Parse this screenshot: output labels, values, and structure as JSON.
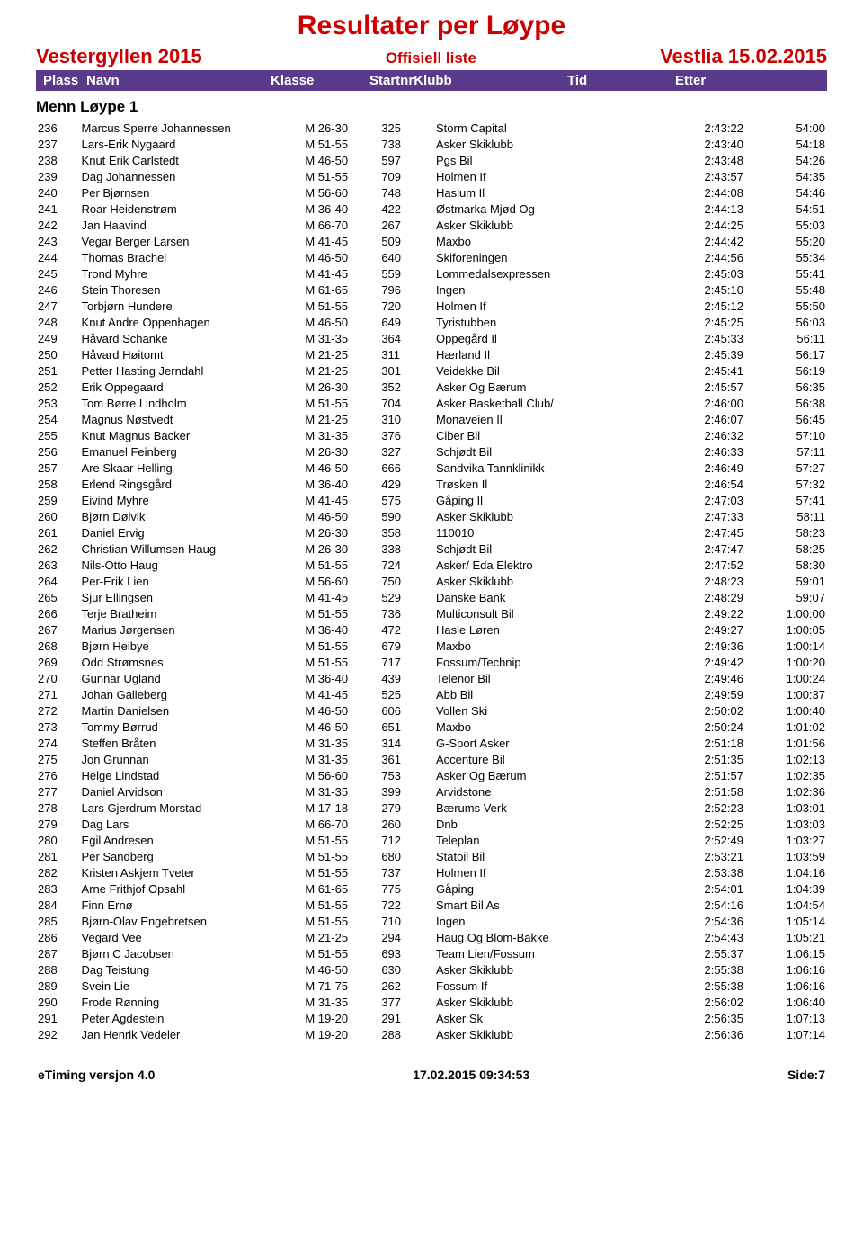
{
  "title": "Resultater per Løype",
  "event": "Vestergyllen 2015",
  "list_label": "Offisiell liste",
  "venue_date": "Vestlia 15.02.2015",
  "columns": {
    "plass": "Plass",
    "navn": "Navn",
    "klasse": "Klasse",
    "startnr": "Startnr",
    "klubb": "Klubb",
    "tid": "Tid",
    "etter": "Etter"
  },
  "section": "Menn Løype 1",
  "colors": {
    "heading": "#cc0000",
    "header_bar_bg": "#5a3a8a",
    "header_bar_fg": "#ffffff",
    "text": "#000000",
    "background": "#ffffff"
  },
  "footer": {
    "left": "eTiming versjon 4.0",
    "center": "17.02.2015 09:34:53",
    "right": "Side:7"
  },
  "rows": [
    {
      "plass": "236",
      "navn": "Marcus Sperre Johannessen",
      "klasse": "M 26-30",
      "startnr": "325",
      "klubb": "Storm Capital",
      "tid": "2:43:22",
      "etter": "54:00"
    },
    {
      "plass": "237",
      "navn": "Lars-Erik Nygaard",
      "klasse": "M 51-55",
      "startnr": "738",
      "klubb": "Asker Skiklubb",
      "tid": "2:43:40",
      "etter": "54:18"
    },
    {
      "plass": "238",
      "navn": "Knut Erik Carlstedt",
      "klasse": "M 46-50",
      "startnr": "597",
      "klubb": "Pgs Bil",
      "tid": "2:43:48",
      "etter": "54:26"
    },
    {
      "plass": "239",
      "navn": "Dag Johannessen",
      "klasse": "M 51-55",
      "startnr": "709",
      "klubb": "Holmen If",
      "tid": "2:43:57",
      "etter": "54:35"
    },
    {
      "plass": "240",
      "navn": "Per Bjørnsen",
      "klasse": "M 56-60",
      "startnr": "748",
      "klubb": "Haslum Il",
      "tid": "2:44:08",
      "etter": "54:46"
    },
    {
      "plass": "241",
      "navn": "Roar Heidenstrøm",
      "klasse": "M 36-40",
      "startnr": "422",
      "klubb": "Østmarka Mjød Og",
      "tid": "2:44:13",
      "etter": "54:51"
    },
    {
      "plass": "242",
      "navn": "Jan Haavind",
      "klasse": "M 66-70",
      "startnr": "267",
      "klubb": "Asker Skiklubb",
      "tid": "2:44:25",
      "etter": "55:03"
    },
    {
      "plass": "243",
      "navn": "Vegar Berger Larsen",
      "klasse": "M 41-45",
      "startnr": "509",
      "klubb": "Maxbo",
      "tid": "2:44:42",
      "etter": "55:20"
    },
    {
      "plass": "244",
      "navn": "Thomas Brachel",
      "klasse": "M 46-50",
      "startnr": "640",
      "klubb": "Skiforeningen",
      "tid": "2:44:56",
      "etter": "55:34"
    },
    {
      "plass": "245",
      "navn": "Trond Myhre",
      "klasse": "M 41-45",
      "startnr": "559",
      "klubb": "Lommedalsexpressen",
      "tid": "2:45:03",
      "etter": "55:41"
    },
    {
      "plass": "246",
      "navn": "Stein Thoresen",
      "klasse": "M 61-65",
      "startnr": "796",
      "klubb": "Ingen",
      "tid": "2:45:10",
      "etter": "55:48"
    },
    {
      "plass": "247",
      "navn": "Torbjørn Hundere",
      "klasse": "M 51-55",
      "startnr": "720",
      "klubb": "Holmen If",
      "tid": "2:45:12",
      "etter": "55:50"
    },
    {
      "plass": "248",
      "navn": "Knut Andre Oppenhagen",
      "klasse": "M 46-50",
      "startnr": "649",
      "klubb": "Tyristubben",
      "tid": "2:45:25",
      "etter": "56:03"
    },
    {
      "plass": "249",
      "navn": "Håvard Schanke",
      "klasse": "M 31-35",
      "startnr": "364",
      "klubb": "Oppegård Il",
      "tid": "2:45:33",
      "etter": "56:11"
    },
    {
      "plass": "250",
      "navn": "Håvard Høitomt",
      "klasse": "M 21-25",
      "startnr": "311",
      "klubb": "Hærland Il",
      "tid": "2:45:39",
      "etter": "56:17"
    },
    {
      "plass": "251",
      "navn": "Petter Hasting Jerndahl",
      "klasse": "M 21-25",
      "startnr": "301",
      "klubb": "Veidekke Bil",
      "tid": "2:45:41",
      "etter": "56:19"
    },
    {
      "plass": "252",
      "navn": "Erik Oppegaard",
      "klasse": "M 26-30",
      "startnr": "352",
      "klubb": "Asker Og Bærum",
      "tid": "2:45:57",
      "etter": "56:35"
    },
    {
      "plass": "253",
      "navn": "Tom Børre Lindholm",
      "klasse": "M 51-55",
      "startnr": "704",
      "klubb": "Asker Basketball Club/",
      "tid": "2:46:00",
      "etter": "56:38"
    },
    {
      "plass": "254",
      "navn": "Magnus Nøstvedt",
      "klasse": "M 21-25",
      "startnr": "310",
      "klubb": "Monaveien Il",
      "tid": "2:46:07",
      "etter": "56:45"
    },
    {
      "plass": "255",
      "navn": "Knut Magnus Backer",
      "klasse": "M 31-35",
      "startnr": "376",
      "klubb": "Ciber Bil",
      "tid": "2:46:32",
      "etter": "57:10"
    },
    {
      "plass": "256",
      "navn": "Emanuel Feinberg",
      "klasse": "M 26-30",
      "startnr": "327",
      "klubb": "Schjødt Bil",
      "tid": "2:46:33",
      "etter": "57:11"
    },
    {
      "plass": "257",
      "navn": "Are Skaar Helling",
      "klasse": "M 46-50",
      "startnr": "666",
      "klubb": "Sandvika Tannklinikk",
      "tid": "2:46:49",
      "etter": "57:27"
    },
    {
      "plass": "258",
      "navn": "Erlend Ringsgård",
      "klasse": "M 36-40",
      "startnr": "429",
      "klubb": "Trøsken Il",
      "tid": "2:46:54",
      "etter": "57:32"
    },
    {
      "plass": "259",
      "navn": "Eivind Myhre",
      "klasse": "M 41-45",
      "startnr": "575",
      "klubb": "Gåping Il",
      "tid": "2:47:03",
      "etter": "57:41"
    },
    {
      "plass": "260",
      "navn": "Bjørn Dølvik",
      "klasse": "M 46-50",
      "startnr": "590",
      "klubb": "Asker Skiklubb",
      "tid": "2:47:33",
      "etter": "58:11"
    },
    {
      "plass": "261",
      "navn": "Daniel Ervig",
      "klasse": "M 26-30",
      "startnr": "358",
      "klubb": "110010",
      "tid": "2:47:45",
      "etter": "58:23"
    },
    {
      "plass": "262",
      "navn": "Christian Willumsen Haug",
      "klasse": "M 26-30",
      "startnr": "338",
      "klubb": "Schjødt Bil",
      "tid": "2:47:47",
      "etter": "58:25"
    },
    {
      "plass": "263",
      "navn": "Nils-Otto Haug",
      "klasse": "M 51-55",
      "startnr": "724",
      "klubb": "Asker/ Eda Elektro",
      "tid": "2:47:52",
      "etter": "58:30"
    },
    {
      "plass": "264",
      "navn": "Per-Erik Lien",
      "klasse": "M 56-60",
      "startnr": "750",
      "klubb": "Asker Skiklubb",
      "tid": "2:48:23",
      "etter": "59:01"
    },
    {
      "plass": "265",
      "navn": "Sjur Ellingsen",
      "klasse": "M 41-45",
      "startnr": "529",
      "klubb": "Danske Bank",
      "tid": "2:48:29",
      "etter": "59:07"
    },
    {
      "plass": "266",
      "navn": "Terje Bratheim",
      "klasse": "M 51-55",
      "startnr": "736",
      "klubb": "Multiconsult Bil",
      "tid": "2:49:22",
      "etter": "1:00:00"
    },
    {
      "plass": "267",
      "navn": "Marius Jørgensen",
      "klasse": "M 36-40",
      "startnr": "472",
      "klubb": "Hasle Løren",
      "tid": "2:49:27",
      "etter": "1:00:05"
    },
    {
      "plass": "268",
      "navn": "Bjørn Heibye",
      "klasse": "M 51-55",
      "startnr": "679",
      "klubb": "Maxbo",
      "tid": "2:49:36",
      "etter": "1:00:14"
    },
    {
      "plass": "269",
      "navn": "Odd Strømsnes",
      "klasse": "M 51-55",
      "startnr": "717",
      "klubb": "Fossum/Technip",
      "tid": "2:49:42",
      "etter": "1:00:20"
    },
    {
      "plass": "270",
      "navn": "Gunnar Ugland",
      "klasse": "M 36-40",
      "startnr": "439",
      "klubb": "Telenor Bil",
      "tid": "2:49:46",
      "etter": "1:00:24"
    },
    {
      "plass": "271",
      "navn": "Johan Galleberg",
      "klasse": "M 41-45",
      "startnr": "525",
      "klubb": "Abb Bil",
      "tid": "2:49:59",
      "etter": "1:00:37"
    },
    {
      "plass": "272",
      "navn": "Martin Danielsen",
      "klasse": "M 46-50",
      "startnr": "606",
      "klubb": "Vollen Ski",
      "tid": "2:50:02",
      "etter": "1:00:40"
    },
    {
      "plass": "273",
      "navn": "Tommy Børrud",
      "klasse": "M 46-50",
      "startnr": "651",
      "klubb": "Maxbo",
      "tid": "2:50:24",
      "etter": "1:01:02"
    },
    {
      "plass": "274",
      "navn": "Steffen Bråten",
      "klasse": "M 31-35",
      "startnr": "314",
      "klubb": "G-Sport Asker",
      "tid": "2:51:18",
      "etter": "1:01:56"
    },
    {
      "plass": "275",
      "navn": "Jon Grunnan",
      "klasse": "M 31-35",
      "startnr": "361",
      "klubb": "Accenture Bil",
      "tid": "2:51:35",
      "etter": "1:02:13"
    },
    {
      "plass": "276",
      "navn": "Helge Lindstad",
      "klasse": "M 56-60",
      "startnr": "753",
      "klubb": "Asker Og Bærum",
      "tid": "2:51:57",
      "etter": "1:02:35"
    },
    {
      "plass": "277",
      "navn": "Daniel Arvidson",
      "klasse": "M 31-35",
      "startnr": "399",
      "klubb": "Arvidstone",
      "tid": "2:51:58",
      "etter": "1:02:36"
    },
    {
      "plass": "278",
      "navn": "Lars Gjerdrum Morstad",
      "klasse": "M 17-18",
      "startnr": "279",
      "klubb": "Bærums Verk",
      "tid": "2:52:23",
      "etter": "1:03:01"
    },
    {
      "plass": "279",
      "navn": "Dag Lars",
      "klasse": "M 66-70",
      "startnr": "260",
      "klubb": "Dnb",
      "tid": "2:52:25",
      "etter": "1:03:03"
    },
    {
      "plass": "280",
      "navn": "Egil Andresen",
      "klasse": "M 51-55",
      "startnr": "712",
      "klubb": "Teleplan",
      "tid": "2:52:49",
      "etter": "1:03:27"
    },
    {
      "plass": "281",
      "navn": "Per Sandberg",
      "klasse": "M 51-55",
      "startnr": "680",
      "klubb": "Statoil Bil",
      "tid": "2:53:21",
      "etter": "1:03:59"
    },
    {
      "plass": "282",
      "navn": "Kristen Askjem Tveter",
      "klasse": "M 51-55",
      "startnr": "737",
      "klubb": "Holmen If",
      "tid": "2:53:38",
      "etter": "1:04:16"
    },
    {
      "plass": "283",
      "navn": "Arne Frithjof Opsahl",
      "klasse": "M 61-65",
      "startnr": "775",
      "klubb": "Gåping",
      "tid": "2:54:01",
      "etter": "1:04:39"
    },
    {
      "plass": "284",
      "navn": "Finn Ernø",
      "klasse": "M 51-55",
      "startnr": "722",
      "klubb": "Smart Bil As",
      "tid": "2:54:16",
      "etter": "1:04:54"
    },
    {
      "plass": "285",
      "navn": "Bjørn-Olav Engebretsen",
      "klasse": "M 51-55",
      "startnr": "710",
      "klubb": "Ingen",
      "tid": "2:54:36",
      "etter": "1:05:14"
    },
    {
      "plass": "286",
      "navn": "Vegard Vee",
      "klasse": "M 21-25",
      "startnr": "294",
      "klubb": "Haug Og Blom-Bakke",
      "tid": "2:54:43",
      "etter": "1:05:21"
    },
    {
      "plass": "287",
      "navn": "Bjørn C Jacobsen",
      "klasse": "M 51-55",
      "startnr": "693",
      "klubb": "Team Lien/Fossum",
      "tid": "2:55:37",
      "etter": "1:06:15"
    },
    {
      "plass": "288",
      "navn": "Dag Teistung",
      "klasse": "M 46-50",
      "startnr": "630",
      "klubb": "Asker Skiklubb",
      "tid": "2:55:38",
      "etter": "1:06:16"
    },
    {
      "plass": "289",
      "navn": "Svein Lie",
      "klasse": "M 71-75",
      "startnr": "262",
      "klubb": "Fossum If",
      "tid": "2:55:38",
      "etter": "1:06:16"
    },
    {
      "plass": "290",
      "navn": "Frode Rønning",
      "klasse": "M 31-35",
      "startnr": "377",
      "klubb": "Asker Skiklubb",
      "tid": "2:56:02",
      "etter": "1:06:40"
    },
    {
      "plass": "291",
      "navn": "Peter Agdestein",
      "klasse": "M 19-20",
      "startnr": "291",
      "klubb": "Asker Sk",
      "tid": "2:56:35",
      "etter": "1:07:13"
    },
    {
      "plass": "292",
      "navn": "Jan Henrik Vedeler",
      "klasse": "M 19-20",
      "startnr": "288",
      "klubb": "Asker Skiklubb",
      "tid": "2:56:36",
      "etter": "1:07:14"
    }
  ]
}
